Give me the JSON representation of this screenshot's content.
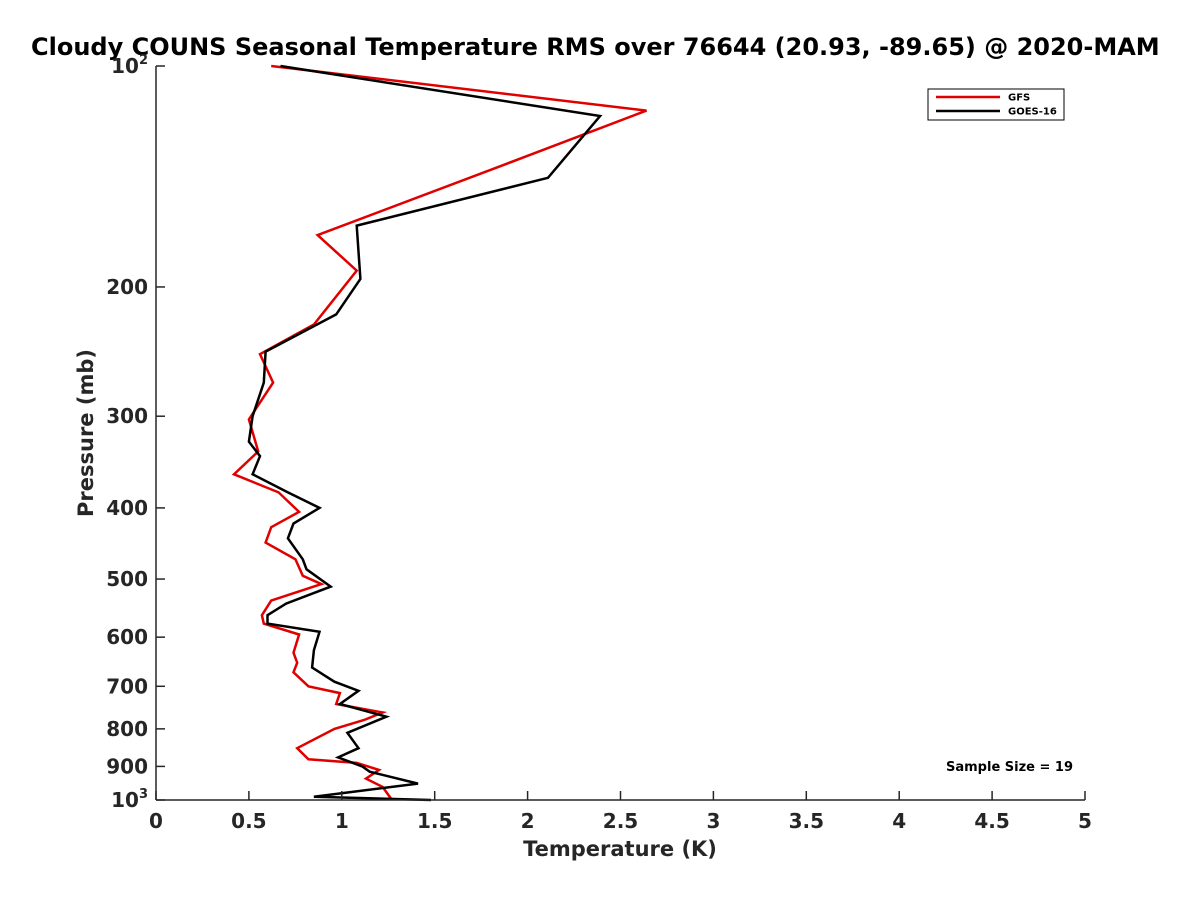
{
  "chart_data": {
    "type": "line",
    "title": "Cloudy COUNS Seasonal Temperature RMS over 76644 (20.93, -89.65) @ 2020-MAM",
    "xlabel": "Temperature (K)",
    "ylabel": "Pressure (mb)",
    "xlim": [
      0,
      5
    ],
    "ylim": [
      100,
      1000
    ],
    "y_scale": "log",
    "y_reversed": true,
    "grid": false,
    "legend_position": "top-right",
    "x_ticks": [
      "0",
      "0.5",
      "1",
      "1.5",
      "2",
      "2.5",
      "3",
      "3.5",
      "4",
      "4.5",
      "5"
    ],
    "y_ticks": [
      {
        "value": 100,
        "base": "10",
        "exp": "2"
      },
      {
        "value": 200,
        "base": "200",
        "exp": ""
      },
      {
        "value": 300,
        "base": "300",
        "exp": ""
      },
      {
        "value": 400,
        "base": "400",
        "exp": ""
      },
      {
        "value": 500,
        "base": "500",
        "exp": ""
      },
      {
        "value": 600,
        "base": "600",
        "exp": ""
      },
      {
        "value": 700,
        "base": "700",
        "exp": ""
      },
      {
        "value": 800,
        "base": "800",
        "exp": ""
      },
      {
        "value": 900,
        "base": "900",
        "exp": ""
      },
      {
        "value": 1000,
        "base": "10",
        "exp": "3"
      }
    ],
    "annotation": "Sample Size = 19",
    "series": [
      {
        "name": "GFS",
        "color": "#e00000",
        "points": [
          [
            0.62,
            100
          ],
          [
            2.64,
            115
          ],
          [
            1.85,
            137
          ],
          [
            0.87,
            170
          ],
          [
            1.08,
            190
          ],
          [
            0.85,
            225
          ],
          [
            0.56,
            247
          ],
          [
            0.63,
            270
          ],
          [
            0.5,
            303
          ],
          [
            0.55,
            335
          ],
          [
            0.42,
            360
          ],
          [
            0.66,
            381
          ],
          [
            0.77,
            405
          ],
          [
            0.62,
            425
          ],
          [
            0.59,
            446
          ],
          [
            0.75,
            470
          ],
          [
            0.79,
            495
          ],
          [
            0.89,
            508
          ],
          [
            0.62,
            535
          ],
          [
            0.57,
            560
          ],
          [
            0.58,
            575
          ],
          [
            0.77,
            595
          ],
          [
            0.74,
            630
          ],
          [
            0.76,
            650
          ],
          [
            0.74,
            670
          ],
          [
            0.82,
            700
          ],
          [
            0.99,
            715
          ],
          [
            0.97,
            740
          ],
          [
            1.22,
            760
          ],
          [
            1.12,
            778
          ],
          [
            0.96,
            800
          ],
          [
            0.76,
            850
          ],
          [
            0.82,
            880
          ],
          [
            1.08,
            890
          ],
          [
            1.2,
            910
          ],
          [
            1.13,
            935
          ],
          [
            1.22,
            960
          ],
          [
            1.27,
            1000
          ]
        ]
      },
      {
        "name": "GOES-16",
        "color": "#000000",
        "points": [
          [
            0.67,
            100
          ],
          [
            2.39,
            117
          ],
          [
            2.11,
            142
          ],
          [
            1.08,
            165
          ],
          [
            1.1,
            195
          ],
          [
            0.97,
            218
          ],
          [
            0.59,
            245
          ],
          [
            0.58,
            270
          ],
          [
            0.52,
            300
          ],
          [
            0.5,
            325
          ],
          [
            0.56,
            340
          ],
          [
            0.52,
            360
          ],
          [
            0.71,
            381
          ],
          [
            0.88,
            400
          ],
          [
            0.74,
            420
          ],
          [
            0.71,
            440
          ],
          [
            0.79,
            470
          ],
          [
            0.81,
            485
          ],
          [
            0.94,
            512
          ],
          [
            0.7,
            540
          ],
          [
            0.6,
            560
          ],
          [
            0.6,
            575
          ],
          [
            0.88,
            590
          ],
          [
            0.85,
            625
          ],
          [
            0.84,
            660
          ],
          [
            0.96,
            690
          ],
          [
            1.09,
            710
          ],
          [
            0.99,
            740
          ],
          [
            1.24,
            770
          ],
          [
            1.03,
            810
          ],
          [
            1.09,
            850
          ],
          [
            0.98,
            875
          ],
          [
            1.11,
            900
          ],
          [
            1.15,
            915
          ],
          [
            1.41,
            950
          ],
          [
            0.85,
            990
          ],
          [
            1.48,
            1000
          ]
        ]
      }
    ]
  }
}
